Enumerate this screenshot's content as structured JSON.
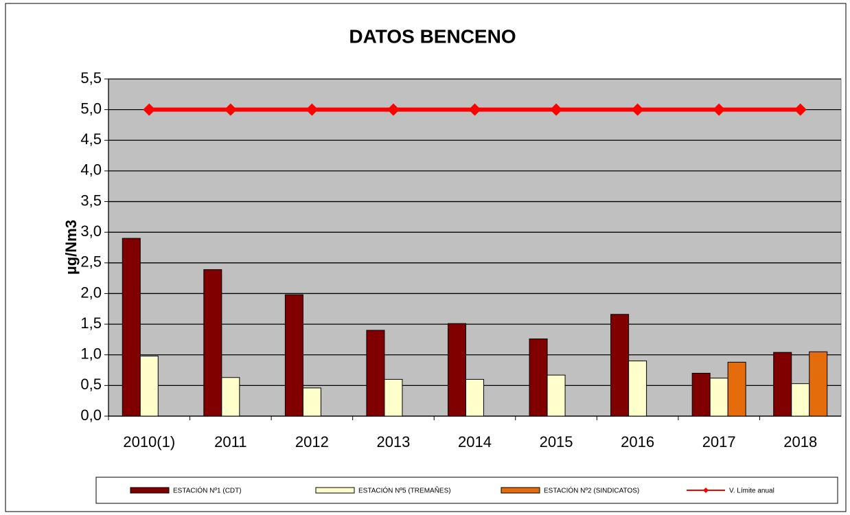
{
  "chart_data": {
    "type": "bar",
    "title": "DATOS BENCENO",
    "y_label": "µg/Nm3",
    "categories": [
      "2010(1)",
      "2011",
      "2012",
      "2013",
      "2014",
      "2015",
      "2016",
      "2017",
      "2018"
    ],
    "series": [
      {
        "name": "ESTACIÓN Nº1 (CDT)",
        "color": "#800000",
        "type": "bar",
        "values": [
          2.9,
          2.39,
          1.98,
          1.4,
          1.51,
          1.26,
          1.66,
          0.7,
          1.04
        ]
      },
      {
        "name": "ESTACIÓN Nº5 (TREMAÑES)",
        "color": "#ffffcc",
        "type": "bar",
        "values": [
          0.98,
          0.63,
          0.46,
          0.6,
          0.6,
          0.67,
          0.9,
          0.62,
          0.53
        ]
      },
      {
        "name": "ESTACIÓN Nº2 (SINDICATOS)",
        "color": "#e46c0a",
        "type": "bar",
        "values": [
          null,
          null,
          null,
          null,
          null,
          null,
          null,
          0.88,
          1.05
        ]
      },
      {
        "name": "V. Límite anual",
        "color": "#ff0000",
        "type": "line",
        "values": [
          5,
          5,
          5,
          5,
          5,
          5,
          5,
          5,
          5
        ]
      }
    ],
    "ylim": [
      0,
      5.5
    ],
    "yticks": [
      {
        "value": 0,
        "label": "0,0"
      },
      {
        "value": 0.5,
        "label": "0,5"
      },
      {
        "value": 1,
        "label": "1,0"
      },
      {
        "value": 1.5,
        "label": "1,5"
      },
      {
        "value": 2,
        "label": "2,0"
      },
      {
        "value": 2.5,
        "label": "2,5"
      },
      {
        "value": 3,
        "label": "3,0"
      },
      {
        "value": 3.5,
        "label": "3,5"
      },
      {
        "value": 4,
        "label": "4,0"
      },
      {
        "value": 4.5,
        "label": "4,5"
      },
      {
        "value": 5,
        "label": "5,0"
      },
      {
        "value": 5.5,
        "label": "5,5"
      }
    ],
    "grid": true,
    "legend": "bottom",
    "plot_background": "#c0c0c0"
  }
}
